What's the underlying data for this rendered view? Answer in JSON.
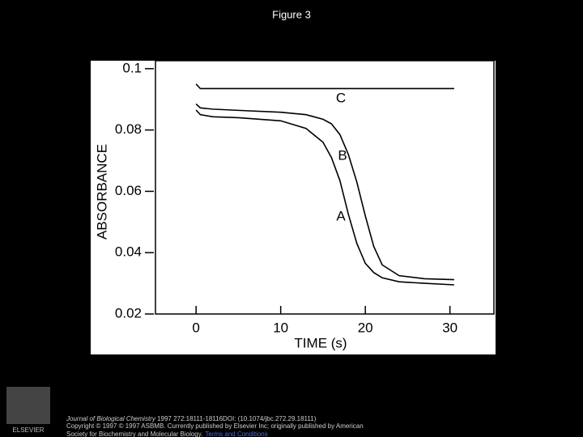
{
  "title": "Figure 3",
  "chart_data": {
    "type": "line",
    "x_label": "TIME (s)",
    "y_label": "ABSORBANCE",
    "x": [
      0,
      0.5,
      2,
      5,
      10,
      13,
      15,
      16,
      17,
      18,
      19,
      20,
      21,
      22,
      24,
      27,
      30.5
    ],
    "series": [
      {
        "name": "A",
        "color": "#000000",
        "values": [
          0.0865,
          0.085,
          0.0843,
          0.084,
          0.083,
          0.0805,
          0.076,
          0.071,
          0.0635,
          0.0525,
          0.043,
          0.0365,
          0.0335,
          0.0318,
          0.0305,
          0.03,
          0.0295
        ]
      },
      {
        "name": "B",
        "color": "#000000",
        "values": [
          0.0885,
          0.0872,
          0.0868,
          0.0864,
          0.0858,
          0.085,
          0.0835,
          0.082,
          0.0785,
          0.072,
          0.063,
          0.052,
          0.042,
          0.036,
          0.0325,
          0.0315,
          0.0312
        ]
      },
      {
        "name": "C",
        "color": "#000000",
        "values": [
          0.095,
          0.0935,
          0.0935,
          0.0935,
          0.0935,
          0.0935,
          0.0935,
          0.0935,
          0.0935,
          0.0935,
          0.0935,
          0.0935,
          0.0935,
          0.0935,
          0.0935,
          0.0935,
          0.0935
        ]
      }
    ],
    "xlim": [
      -4.8,
      35.2
    ],
    "xticks": [
      0,
      10,
      20,
      30
    ],
    "ylim": [
      0.02,
      0.1026
    ],
    "yticks": [
      0.02,
      0.04,
      0.06,
      0.08,
      0.1
    ]
  },
  "logo": "ELSEVIER",
  "citation": {
    "journal": "Journal of Biological Chemistry",
    "ref": " 1997 272:18111-18116DOI: (10.1074/jbc.272.29.18111)",
    "copyright": "Copyright © 1997 © 1997 ASBMB. Currently published by Elsevier Inc; originally published by American",
    "society": "Society for Biochemistry and Molecular Biology.",
    "terms": "Terms and Conditions"
  }
}
